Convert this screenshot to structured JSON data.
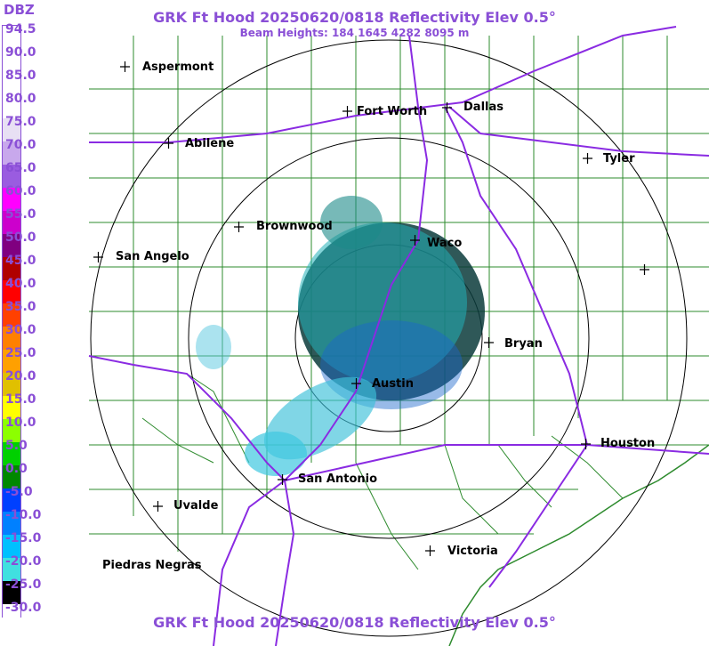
{
  "header": {
    "title": "GRK Ft Hood 20250620/0818 Reflectivity Elev 0.5°",
    "beam_heights": "Beam Heights: 184 1645 4282 8095 m",
    "footer_title": "GRK Ft Hood 20250620/0818 Reflectivity Elev 0.5°"
  },
  "legend": {
    "unit": "DBZ",
    "labels": [
      "94.5",
      "90.0",
      "85.0",
      "80.0",
      "75.0",
      "70.0",
      "65.0",
      "60.0",
      "55.0",
      "50.0",
      "45.0",
      "40.0",
      "35.0",
      "30.0",
      "25.0",
      "20.0",
      "15.0",
      "10.0",
      "5.0",
      "0.0",
      "-5.0",
      "-10.0",
      "-15.0",
      "-20.0",
      "-25.0",
      "-30.0"
    ],
    "colors": [
      "#ffffff",
      "#ffffff",
      "#ffffff",
      "#ffffff",
      "#e8e0f4",
      "#c8a8ec",
      "#9a5ce0",
      "#ff00ff",
      "#cc00cc",
      "#800080",
      "#b00000",
      "#ff0000",
      "#ff4000",
      "#ff8000",
      "#ffa000",
      "#e0c000",
      "#ffff00",
      "#8cff00",
      "#00d000",
      "#008800",
      "#0040ff",
      "#0080ff",
      "#00c0ff",
      "#40e0e0",
      "#000000",
      "#ffffff"
    ]
  },
  "cities": [
    {
      "name": "Aspermont"
    },
    {
      "name": "Fort Worth"
    },
    {
      "name": "Dallas"
    },
    {
      "name": "Abilene"
    },
    {
      "name": "Tyler"
    },
    {
      "name": "Brownwood"
    },
    {
      "name": "Waco"
    },
    {
      "name": "San Angelo"
    },
    {
      "name": "Bryan"
    },
    {
      "name": "Austin"
    },
    {
      "name": "Houston"
    },
    {
      "name": "San Antonio"
    },
    {
      "name": "Uvalde"
    },
    {
      "name": "Victoria"
    },
    {
      "name": "Piedras Negras"
    },
    {
      "name": ""
    }
  ],
  "colors": {
    "title": "#8a4fd6",
    "highway": "#8a2be2",
    "county_line": "#2e8b2e",
    "range_ring": "#000000"
  }
}
